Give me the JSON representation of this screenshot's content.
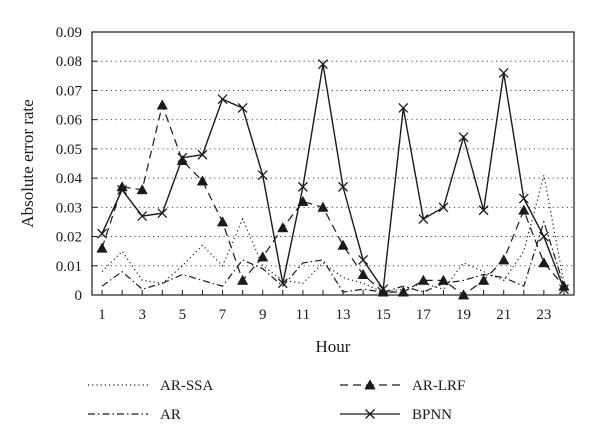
{
  "chart_data": {
    "type": "line",
    "xlabel": "Hour",
    "ylabel": "Absolute error rate",
    "xlim": [
      1,
      24
    ],
    "ylim": [
      0,
      0.09
    ],
    "x_ticks": [
      1,
      3,
      5,
      7,
      9,
      11,
      13,
      15,
      17,
      19,
      21,
      23
    ],
    "y_ticks": [
      0,
      0.01,
      0.02,
      0.03,
      0.04,
      0.05,
      0.06,
      0.07,
      0.08,
      0.09
    ],
    "y_tick_labels": [
      "0",
      "0.01",
      "0.02",
      "0.03",
      "0.04",
      "0.05",
      "0.06",
      "0.07",
      "0.08",
      "0.09"
    ],
    "grid": "horizontal dotted",
    "legend_position": "bottom",
    "x": [
      1,
      2,
      3,
      4,
      5,
      6,
      7,
      8,
      9,
      10,
      11,
      12,
      13,
      14,
      15,
      16,
      17,
      18,
      19,
      20,
      21,
      22,
      23,
      24
    ],
    "series": [
      {
        "name": "AR-SSA",
        "style": "dotted",
        "marker": "none",
        "values": [
          0.008,
          0.015,
          0.005,
          0.004,
          0.01,
          0.017,
          0.01,
          0.026,
          0.01,
          0.005,
          0.004,
          0.011,
          0.006,
          0.004,
          0.001,
          0.002,
          0.004,
          0.002,
          0.011,
          0.008,
          0.005,
          0.015,
          0.041,
          0.004
        ]
      },
      {
        "name": "AR",
        "style": "dash-dot",
        "marker": "none",
        "values": [
          0.003,
          0.008,
          0.002,
          0.004,
          0.007,
          0.005,
          0.003,
          0.012,
          0.009,
          0.003,
          0.011,
          0.012,
          0.001,
          0.002,
          0.001,
          0.003,
          0.001,
          0.004,
          0.005,
          0.007,
          0.006,
          0.003,
          0.025,
          0.003
        ]
      },
      {
        "name": "AR-LRF",
        "style": "dashed",
        "marker": "triangle",
        "values": [
          0.016,
          0.037,
          0.036,
          0.065,
          0.046,
          0.039,
          0.025,
          0.005,
          0.013,
          0.023,
          0.032,
          0.03,
          0.017,
          0.007,
          0.001,
          0.001,
          0.005,
          0.005,
          0.0,
          0.005,
          0.012,
          0.029,
          0.011,
          0.003
        ]
      },
      {
        "name": "BPNN",
        "style": "solid",
        "marker": "x",
        "values": [
          0.021,
          0.036,
          0.027,
          0.028,
          0.047,
          0.048,
          0.067,
          0.064,
          0.041,
          0.004,
          0.037,
          0.079,
          0.037,
          0.012,
          0.002,
          0.064,
          0.026,
          0.03,
          0.054,
          0.029,
          0.076,
          0.033,
          0.02,
          0.002
        ]
      }
    ]
  }
}
